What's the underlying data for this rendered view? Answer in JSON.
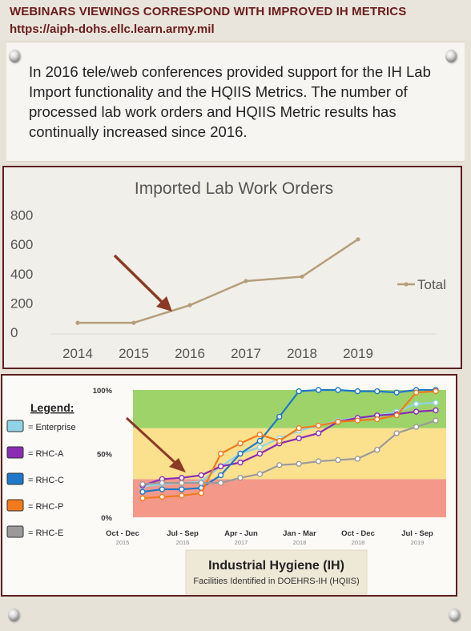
{
  "header": {
    "title": "WEBINARS VIEWINGS CORRESPOND WITH IMPROVED IH METRICS",
    "url": "https://aiph-dohs.ellc.learn.army.mil"
  },
  "note": {
    "text": "In 2016 tele/web conferences provided support for the IH Lab Import functionality and the HQIIS Metrics. The number of processed lab work orders and HQIIS Metric results has continually increased since 2016."
  },
  "chart_data": [
    {
      "type": "line",
      "title": "Imported Lab Work Orders",
      "categories": [
        "2014",
        "2015",
        "2016",
        "2017",
        "2018",
        "2019"
      ],
      "series": [
        {
          "name": "Total",
          "values": [
            65,
            65,
            185,
            350,
            380,
            635
          ],
          "color": "#b59e7b"
        }
      ],
      "yticks": [
        "0",
        "200",
        "400",
        "600",
        "800"
      ],
      "ylim": [
        0,
        800
      ],
      "legend": "right",
      "annotation": "arrow pointing to 2016"
    },
    {
      "type": "line",
      "title": "Industrial Hygiene (IH)",
      "subtitle": "Facilities Identified in DOEHRS-IH (HQIIS)",
      "legend_title": "Legend:",
      "yticks": [
        "0%",
        "50%",
        "100%"
      ],
      "ylim": [
        0,
        100
      ],
      "xticks": [
        {
          "quarter": "Oct - Dec",
          "year": "2015"
        },
        {
          "quarter": "Jul - Sep",
          "year": "2016"
        },
        {
          "quarter": "Apr - Jun",
          "year": "2017"
        },
        {
          "quarter": "Jan - Mar",
          "year": "2018"
        },
        {
          "quarter": "Oct - Dec",
          "year": "2018"
        },
        {
          "quarter": "Jul - Sep",
          "year": "2019"
        }
      ],
      "bands": [
        {
          "from": 0,
          "to": 30,
          "color": "#f4998a"
        },
        {
          "from": 30,
          "to": 70,
          "color": "#fbe08e"
        },
        {
          "from": 70,
          "to": 100,
          "color": "#9ed36a"
        }
      ],
      "series": [
        {
          "name": "= Enterprise",
          "color": "#8fd3e6",
          "values": [
            24,
            26,
            27,
            28,
            40,
            50,
            55,
            62,
            68,
            72,
            76,
            78,
            80,
            83,
            89,
            90
          ]
        },
        {
          "name": "= RHC-A",
          "color": "#8a2bb5",
          "values": [
            25,
            30,
            31,
            33,
            40,
            43,
            50,
            58,
            62,
            66,
            75,
            78,
            80,
            81,
            83,
            84
          ]
        },
        {
          "name": "= RHC-C",
          "color": "#1f78c8",
          "values": [
            20,
            22,
            22,
            23,
            33,
            50,
            60,
            79,
            99,
            100,
            100,
            99,
            99,
            98,
            100,
            100
          ]
        },
        {
          "name": "= RHC-P",
          "color": "#f27a1a",
          "values": [
            15,
            16,
            17,
            19,
            50,
            58,
            65,
            60,
            70,
            72,
            75,
            76,
            77,
            80,
            98,
            99
          ]
        },
        {
          "name": "= RHC-E",
          "color": "#9a9a9a",
          "values": [
            26,
            27,
            27,
            27,
            27,
            31,
            34,
            41,
            42,
            44,
            45,
            46,
            53,
            66,
            71,
            76
          ]
        }
      ],
      "annotation": "arrow pointing to Jul - Sep 2016"
    }
  ]
}
